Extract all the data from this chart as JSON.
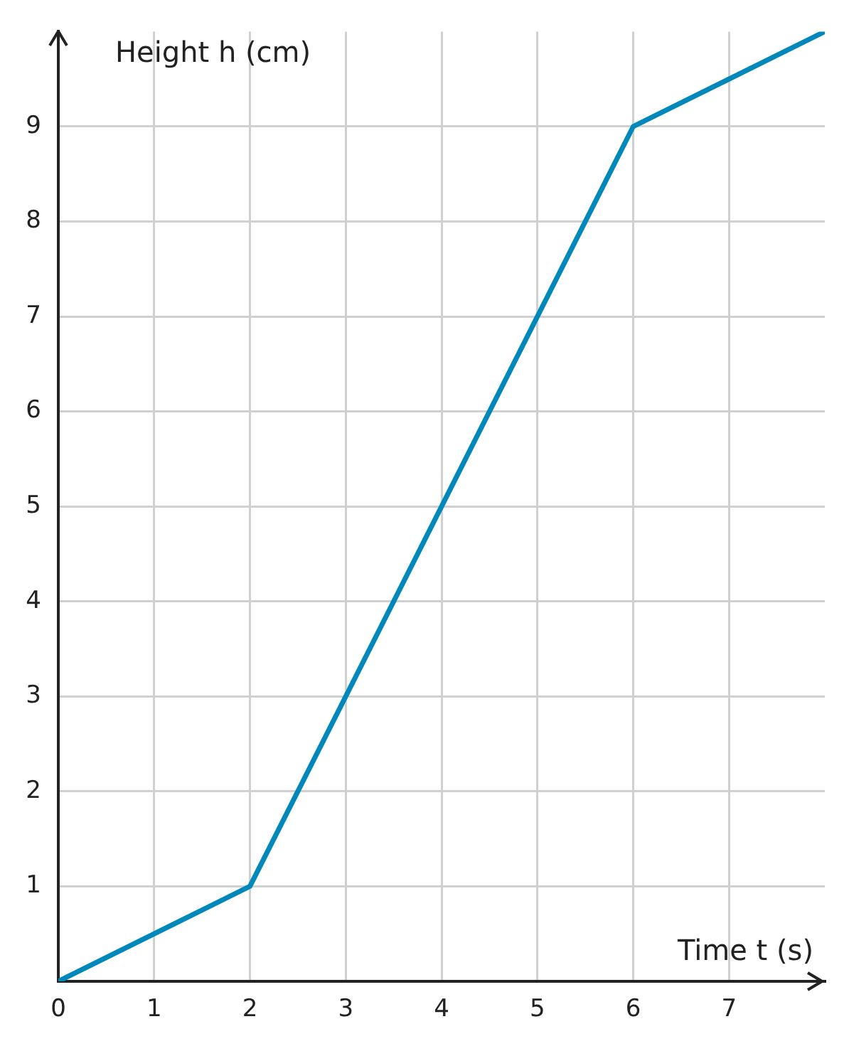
{
  "chart_data": {
    "type": "line",
    "xlabel": "Time t (s)",
    "ylabel": "Height h (cm)",
    "x": [
      0,
      2,
      6,
      8
    ],
    "series": [
      {
        "color": "#0088bb",
        "values": [
          0,
          1,
          9,
          10
        ]
      }
    ],
    "xlim": [
      0,
      8
    ],
    "ylim": [
      0,
      10
    ],
    "xticks": [
      0,
      1,
      2,
      3,
      4,
      5,
      6,
      7
    ],
    "yticks": [
      1,
      2,
      3,
      4,
      5,
      6,
      7,
      8,
      9
    ],
    "grid": true,
    "legend": false,
    "marker": "none",
    "line_style": "solid"
  }
}
